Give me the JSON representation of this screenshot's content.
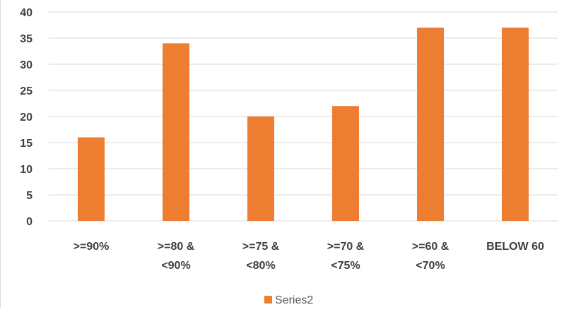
{
  "chart_data": {
    "type": "bar",
    "title": "",
    "xlabel": "",
    "ylabel": "",
    "categories": [
      ">=90%",
      ">=80 & <90%",
      ">=75 & <80%",
      ">=70 & <75%",
      ">=60 & <70%",
      "BELOW 60"
    ],
    "category_lines": [
      [
        ">=90%"
      ],
      [
        ">=80 &",
        "<90%"
      ],
      [
        ">=75 &",
        "<80%"
      ],
      [
        ">=70 &",
        "<75%"
      ],
      [
        ">=60 &",
        "<70%"
      ],
      [
        "BELOW 60"
      ]
    ],
    "series": [
      {
        "name": "Series2",
        "values": [
          16,
          34,
          20,
          22,
          37,
          37
        ],
        "color": "#ED7D31"
      }
    ],
    "ylim": [
      0,
      40
    ],
    "y_ticks": [
      0,
      5,
      10,
      15,
      20,
      25,
      30,
      35,
      40
    ],
    "grid": true,
    "grid_color": "#d9d9d9",
    "legend": "bottom"
  }
}
